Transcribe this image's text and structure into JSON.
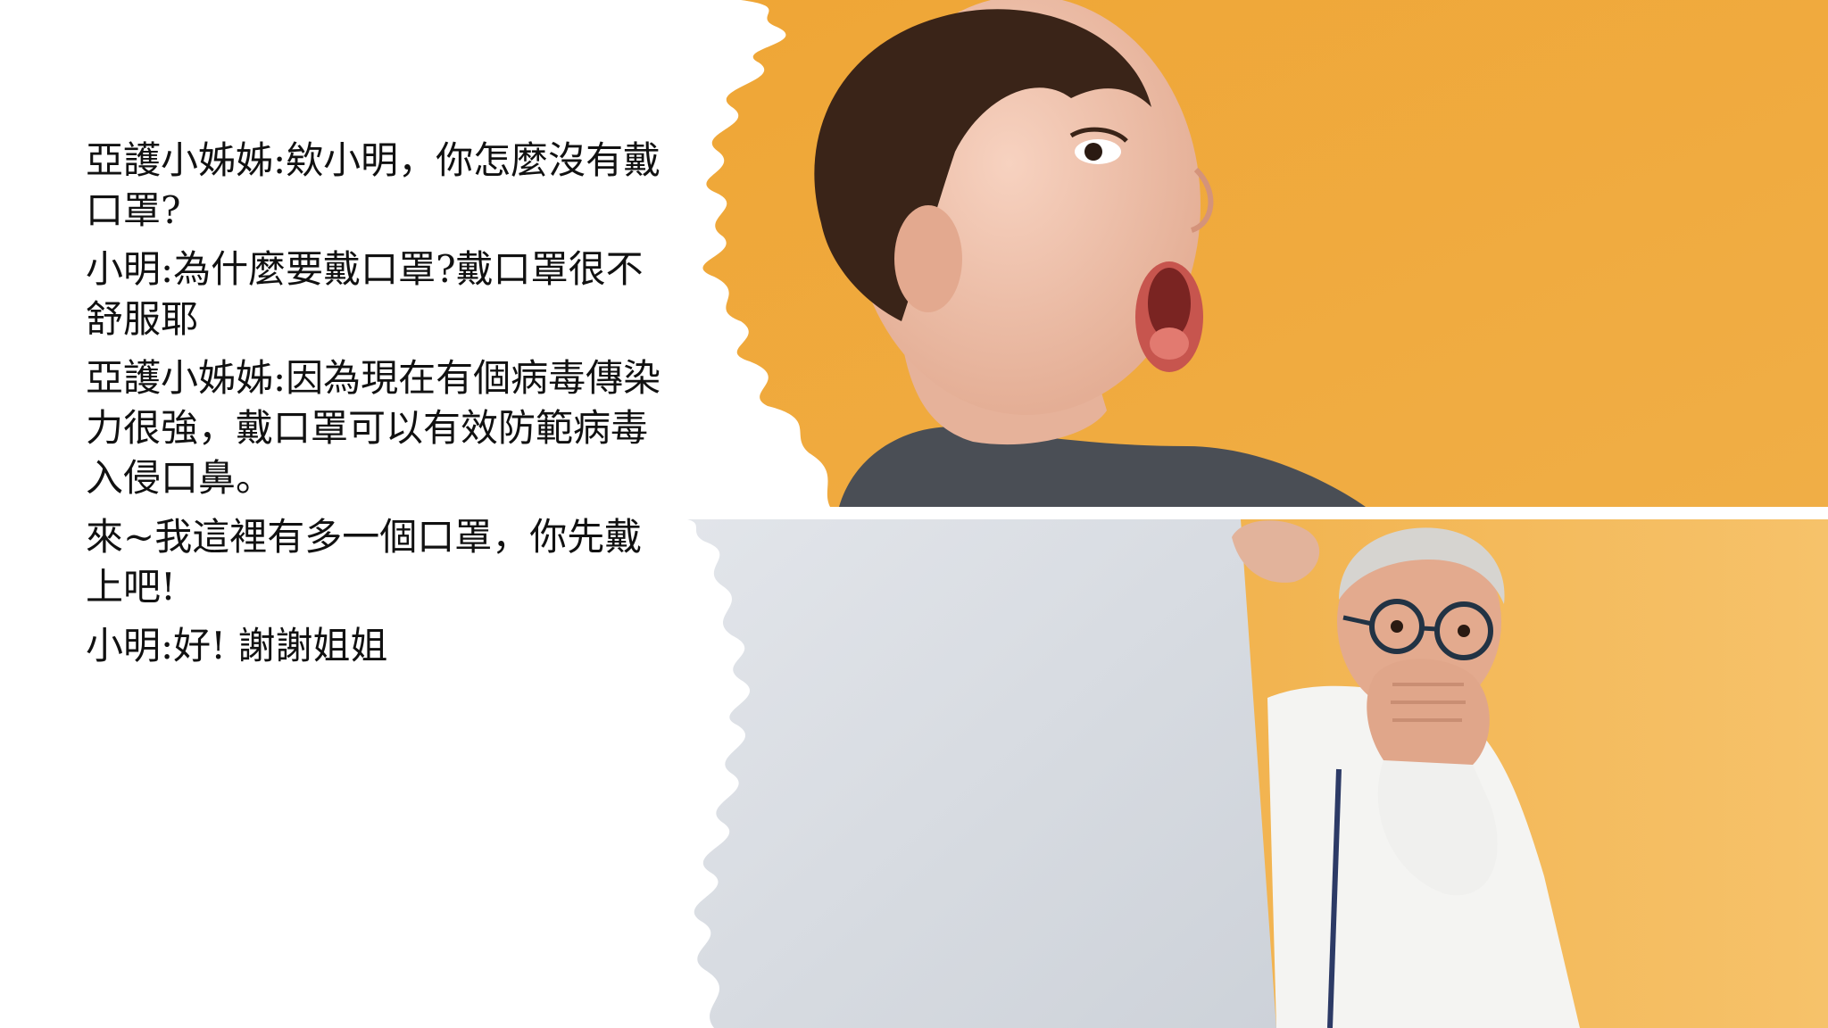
{
  "dialogue": {
    "lines": [
      "亞護小姊姊:欸小明，你怎麼沒有戴口罩?",
      "小明:為什麼要戴口罩?戴口罩很不舒服耶",
      "亞護小姊姊:因為現在有個病毒傳染力很強，戴口罩可以有效防範病毒入侵口鼻。",
      "來~我這裡有多一個口罩，你先戴上吧!",
      "小明:好!  謝謝姐姐"
    ]
  },
  "images": {
    "top": {
      "icon": "surprised-child-photo",
      "background_color": "#F2A93B"
    },
    "bottom": {
      "icon": "surprised-senior-man-holding-blank-board-photo",
      "background_color": "#F3B54E",
      "board_color": "#D9DDE2"
    }
  }
}
